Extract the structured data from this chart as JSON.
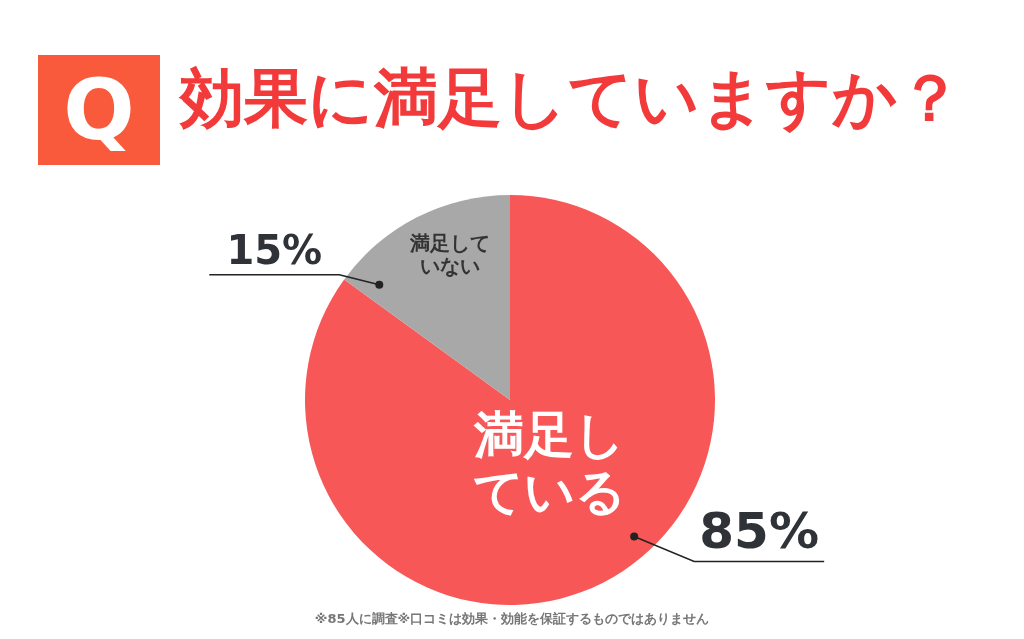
{
  "chart_data": {
    "type": "pie",
    "title": "効果に満足していますか？",
    "categories": [
      "満足している",
      "満足していない"
    ],
    "values": [
      85,
      15
    ],
    "colors": [
      "#f85758",
      "#a8a8a8"
    ],
    "value_labels": [
      "85%",
      "15%"
    ],
    "annotations": [
      "Q",
      "※85人に調査※口コミは効果・効能を保証するものではありません"
    ]
  }
}
